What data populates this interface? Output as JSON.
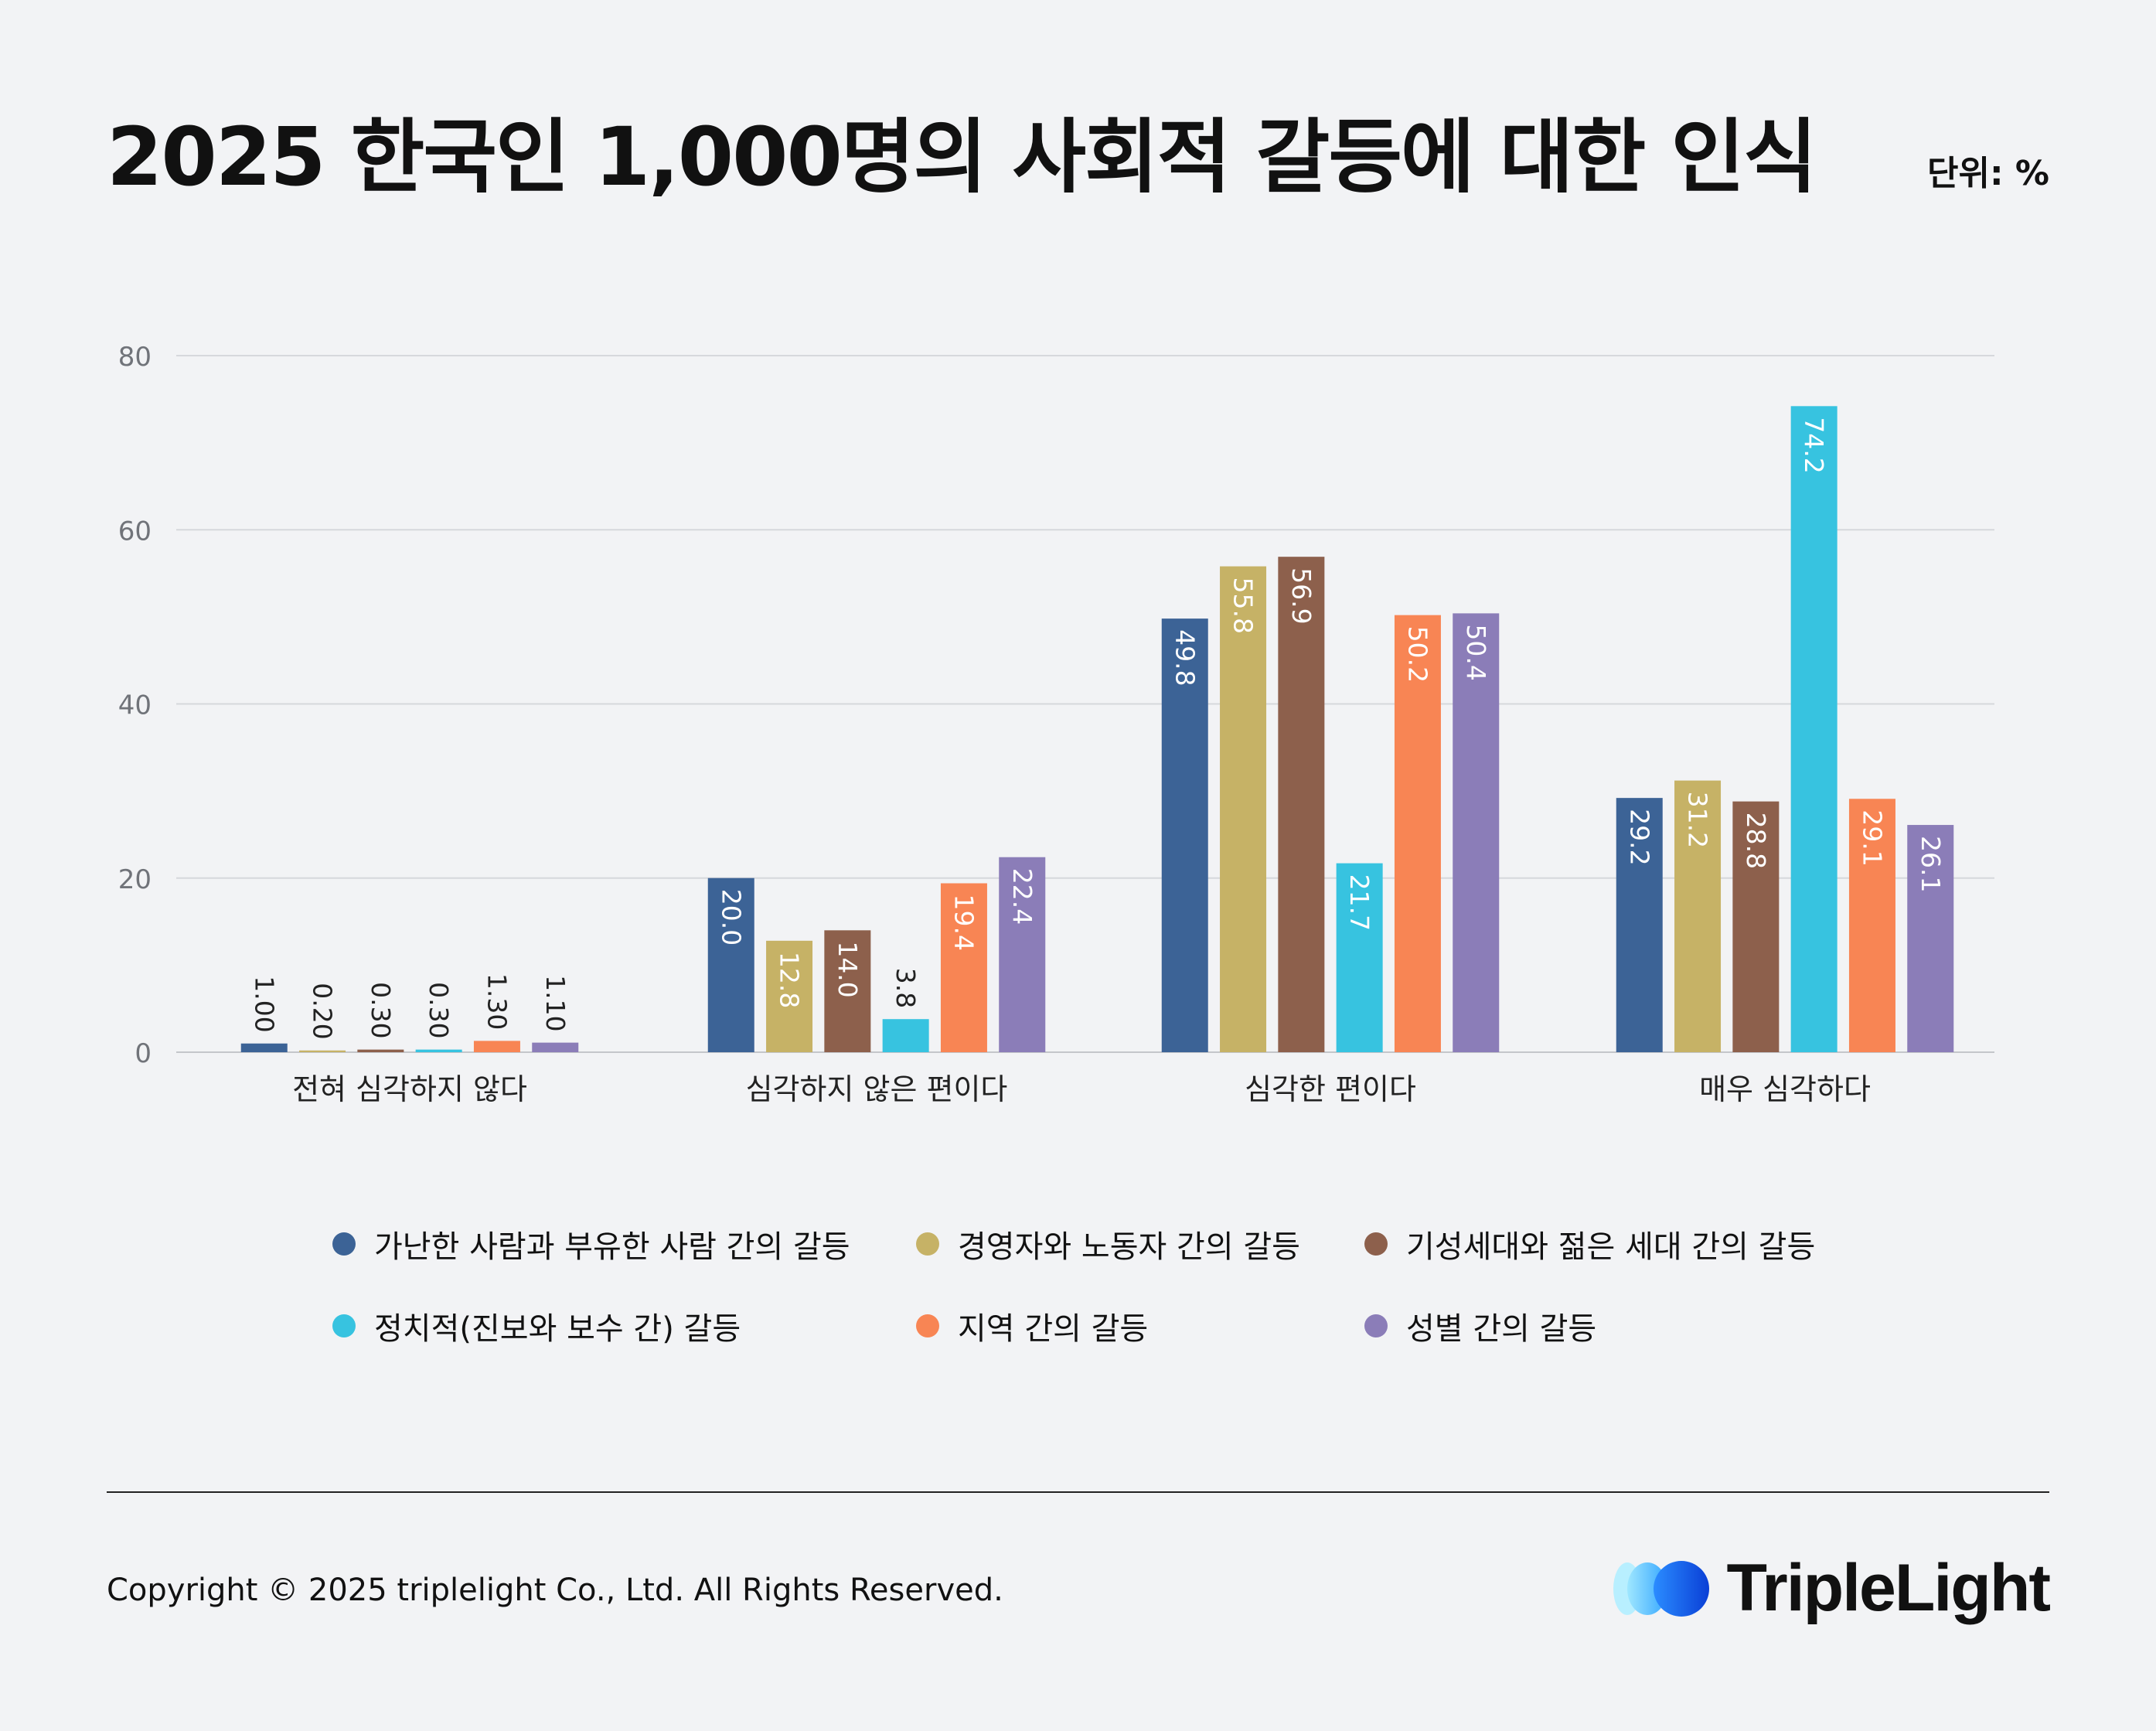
{
  "header": {
    "title": "2025 한국인 1,000명의 사회적 갈등에 대한 인식",
    "unit": "단위: %"
  },
  "chart_data": {
    "type": "bar",
    "title": "2025 한국인 1,000명의 사회적 갈등에 대한 인식",
    "xlabel": "",
    "ylabel": "",
    "ylim": [
      0,
      80
    ],
    "yticks": [
      "0",
      "20",
      "40",
      "60",
      "80"
    ],
    "grid": true,
    "legend_position": "bottom",
    "categories": [
      "전혀 심각하지 않다",
      "심각하지 않은 편이다",
      "심각한 편이다",
      "매우 심각하다"
    ],
    "series": [
      {
        "name": "가난한 사람과 부유한 사람 간의 갈등",
        "color": "#3c6396",
        "values": [
          1.0,
          20.0,
          49.8,
          29.2
        ],
        "labels": [
          "1.00",
          "20.0",
          "49.8",
          "29.2"
        ]
      },
      {
        "name": "경영자와 노동자 간의 갈등",
        "color": "#c6b266",
        "values": [
          0.2,
          12.8,
          55.8,
          31.2
        ],
        "labels": [
          "0.20",
          "12.8",
          "55.8",
          "31.2"
        ]
      },
      {
        "name": "기성세대와 젊은 세대 간의 갈등",
        "color": "#8d604c",
        "values": [
          0.3,
          14.0,
          56.9,
          28.8
        ],
        "labels": [
          "0.30",
          "14.0",
          "56.9",
          "28.8"
        ]
      },
      {
        "name": "정치적(진보와 보수 간) 갈등",
        "color": "#37c3e0",
        "values": [
          0.3,
          3.8,
          21.7,
          74.2
        ],
        "labels": [
          "0.30",
          "3.8",
          "21.7",
          "74.2"
        ]
      },
      {
        "name": "지역 간의 갈등",
        "color": "#f88554",
        "values": [
          1.3,
          19.4,
          50.2,
          29.1
        ],
        "labels": [
          "1.30",
          "19.4",
          "50.2",
          "29.1"
        ]
      },
      {
        "name": "성별 간의 갈등",
        "color": "#8b7db8",
        "values": [
          1.1,
          22.4,
          50.4,
          26.1
        ],
        "labels": [
          "1.10",
          "22.4",
          "50.4",
          "26.1"
        ]
      }
    ]
  },
  "footer": {
    "copyright": "Copyright © 2025 triplelight Co., Ltd. All Rights Reserved.",
    "brand": "TripleLight"
  }
}
